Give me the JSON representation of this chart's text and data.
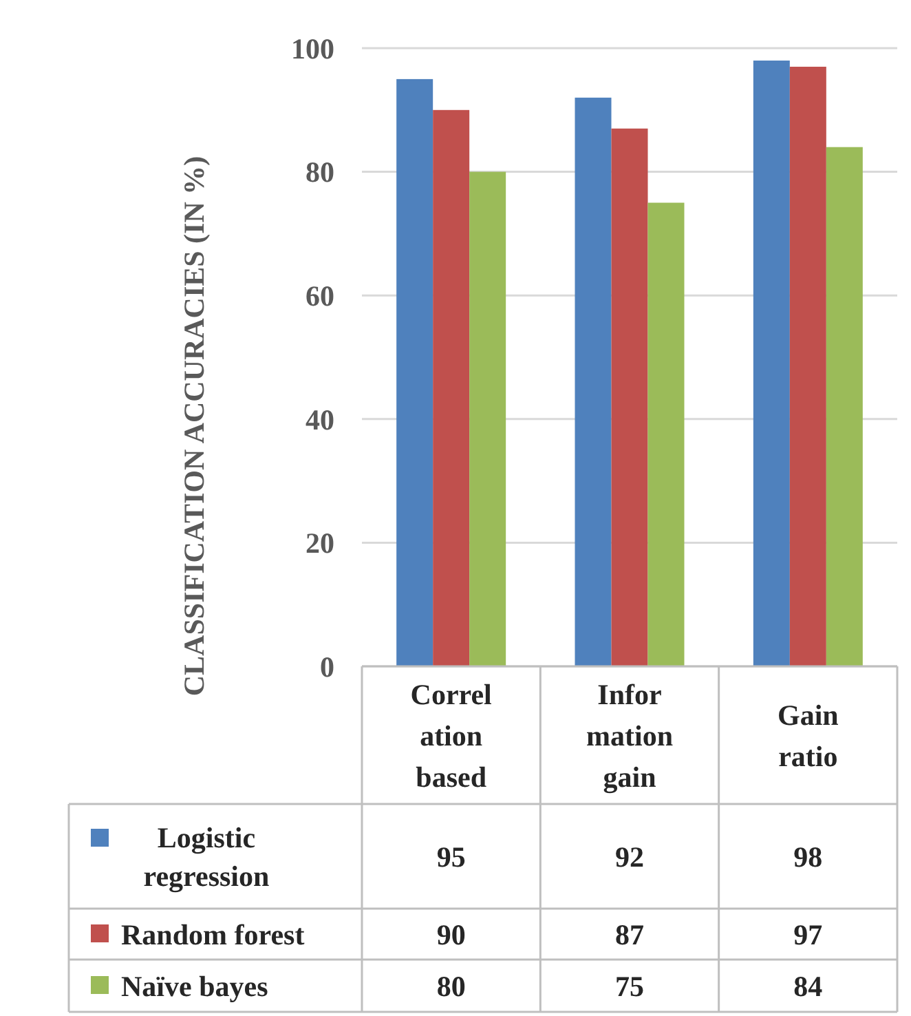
{
  "chart_data": {
    "type": "bar",
    "ylabel": "CLASSIFICATION ACCURACIES (IN %)",
    "categories": [
      "Correl\nation\nbased",
      "Infor\nmation\ngain",
      "Gain\nratio"
    ],
    "series": [
      {
        "name": "Logistic regression",
        "color": "#4f81bd",
        "values": [
          95,
          92,
          98
        ]
      },
      {
        "name": "Random forest",
        "color": "#c0504d",
        "values": [
          90,
          87,
          97
        ]
      },
      {
        "name": "Naïve bayes",
        "color": "#9bbb59",
        "values": [
          80,
          75,
          84
        ]
      }
    ],
    "ylim": [
      0,
      100
    ],
    "yticks": [
      0,
      20,
      40,
      60,
      80,
      100
    ],
    "grid": "y",
    "legend": "bottom",
    "data_labels": true
  }
}
